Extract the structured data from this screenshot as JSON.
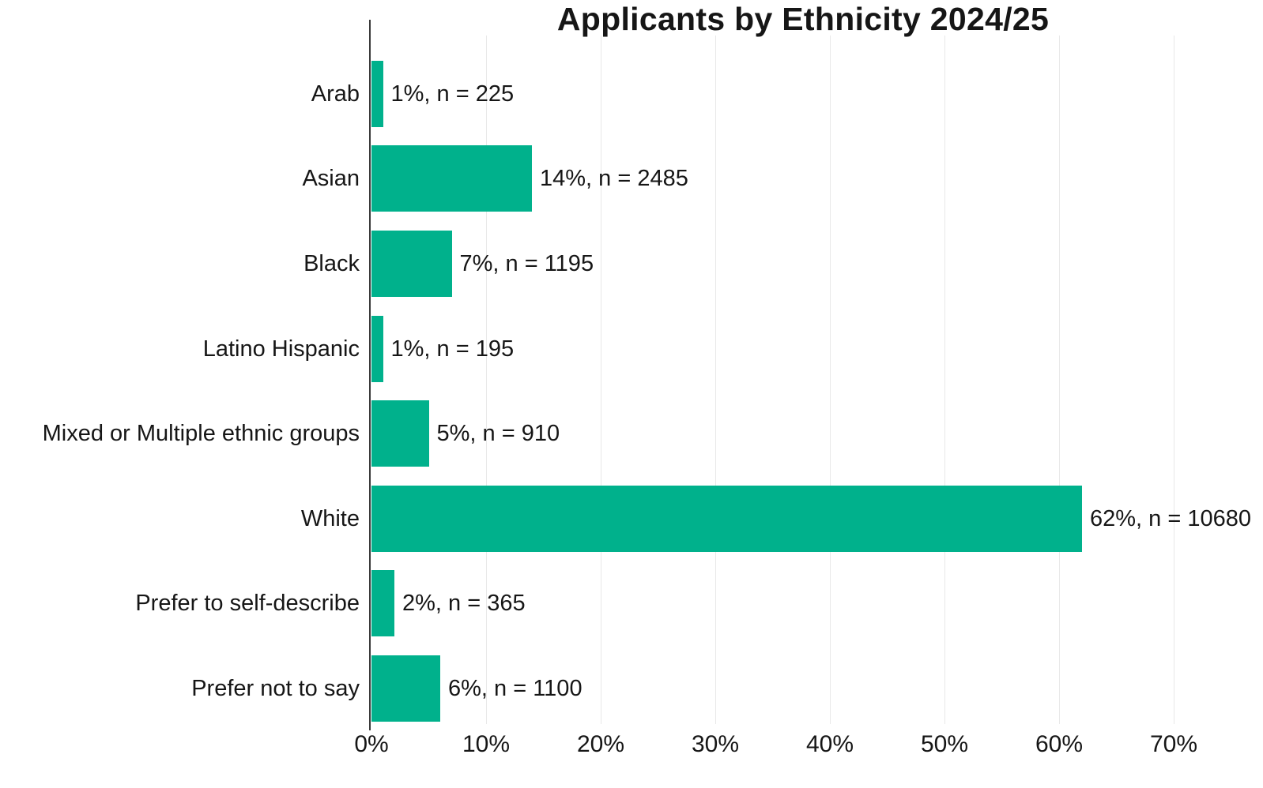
{
  "page": {
    "background_color": "#ffffff"
  },
  "chart_data": {
    "type": "bar",
    "orientation": "horizontal",
    "title": "Applicants by Ethnicity 2024/25",
    "categories": [
      "Arab",
      "Asian",
      "Black",
      "Latino Hispanic",
      "Mixed or Multiple ethnic groups",
      "White",
      "Prefer to self-describe",
      "Prefer not to say"
    ],
    "series": [
      {
        "name": "Applicants",
        "values_pct": [
          1,
          14,
          7,
          1,
          5,
          62,
          2,
          6
        ],
        "counts_n": [
          225,
          2485,
          1195,
          195,
          910,
          10680,
          365,
          1100
        ]
      }
    ],
    "bar_labels": [
      "1%, n = 225",
      "14%, n = 2485",
      "7%, n = 1195",
      "1%, n = 195",
      "5%, n = 910",
      "62%, n = 10680",
      "2%, n = 365",
      "6%, n = 1100"
    ],
    "xlabel": "",
    "ylabel": "",
    "x_tick_labels": [
      "0%",
      "10%",
      "20%",
      "30%",
      "40%",
      "50%",
      "60%",
      "70%"
    ],
    "x_tick_values": [
      0,
      10,
      20,
      30,
      40,
      50,
      60,
      70
    ],
    "xlim": [
      0,
      75.3
    ],
    "grid": true,
    "legend": "none",
    "colors": {
      "bar": "#00B18C",
      "gridline": "#E8E8E8",
      "axis_line": "#3A3A3A",
      "text": "#161616",
      "title": "#161616"
    }
  }
}
